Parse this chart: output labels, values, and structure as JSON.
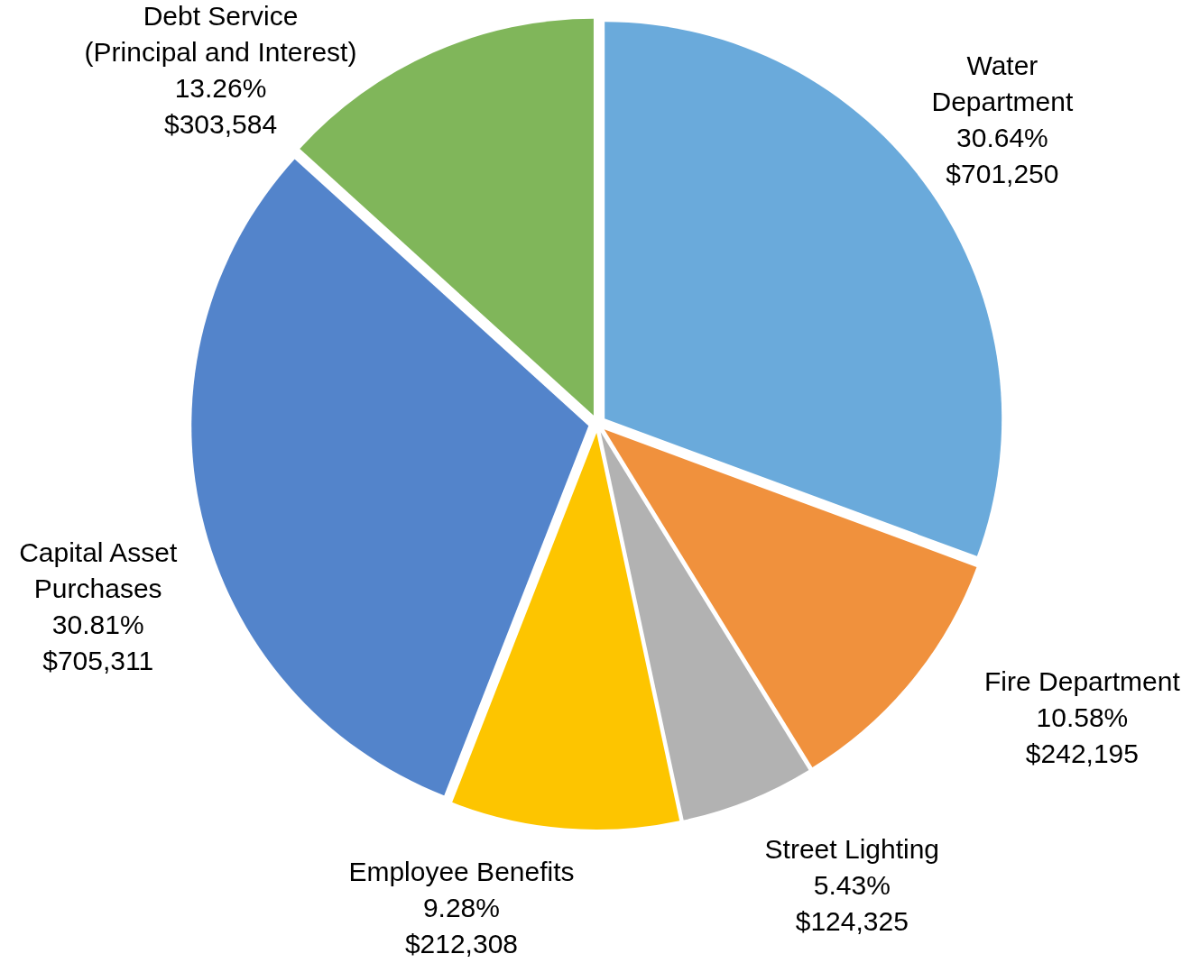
{
  "chart_data": {
    "type": "pie",
    "categories": [
      "Water Department",
      "Fire Department",
      "Street Lighting",
      "Employee Benefits",
      "Capital Asset Purchases",
      "Debt Service (Principal and Interest)"
    ],
    "values": [
      701250,
      242195,
      124325,
      212308,
      705311,
      303584
    ],
    "colors": [
      "#6aaadb",
      "#f0913d",
      "#b2b2b2",
      "#fdc500",
      "#5384cb",
      "#80b65a"
    ],
    "value_labels": [
      "30.64%\n$701,250",
      "10.58%\n$242,195",
      "5.43%\n$124,325",
      "9.28%\n$212,308",
      "30.81%\n$705,311",
      "13.26%\n$303,584"
    ]
  }
}
